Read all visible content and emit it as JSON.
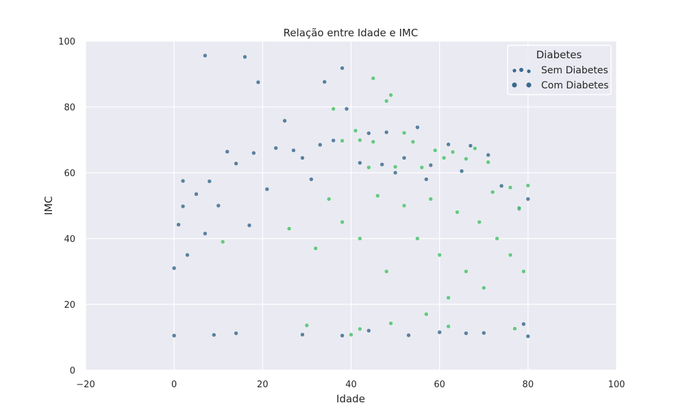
{
  "chart_data": {
    "type": "scatter",
    "title": "Relação entre Idade e IMC",
    "xlabel": "Idade",
    "ylabel": "IMC",
    "xlim": [
      -20,
      100
    ],
    "ylim": [
      0,
      100
    ],
    "xticks": [
      "−20",
      "0",
      "20",
      "40",
      "60",
      "80",
      "100"
    ],
    "yticks": [
      "0",
      "20",
      "40",
      "60",
      "80",
      "100"
    ],
    "grid": true,
    "legend": {
      "title": "Diabetes",
      "placement": "top-right",
      "entries": [
        "Sem Diabetes",
        "Com Diabetes"
      ]
    },
    "series": [
      {
        "name": "Sem Diabetes",
        "color": "#3b6a8c",
        "points": [
          [
            7,
            95.6
          ],
          [
            16,
            95.2
          ],
          [
            38,
            91.8
          ],
          [
            19,
            87.5
          ],
          [
            34,
            87.6
          ],
          [
            39,
            79.4
          ],
          [
            25,
            75.8
          ],
          [
            55,
            73.8
          ],
          [
            44,
            72
          ],
          [
            48,
            72.3
          ],
          [
            67,
            68.2
          ],
          [
            62,
            68.6
          ],
          [
            71,
            65.4
          ],
          [
            12,
            66.4
          ],
          [
            18,
            66.0
          ],
          [
            23,
            67.5
          ],
          [
            27,
            66.8
          ],
          [
            33,
            68.5
          ],
          [
            2,
            57.5
          ],
          [
            8,
            57.4
          ],
          [
            2,
            49.8
          ],
          [
            5,
            53.5
          ],
          [
            1,
            44.2
          ],
          [
            7,
            41.5
          ],
          [
            0,
            31
          ],
          [
            3,
            35
          ],
          [
            10,
            50
          ],
          [
            14,
            62.8
          ],
          [
            29,
            64.5
          ],
          [
            36,
            69.8
          ],
          [
            52,
            64.5
          ],
          [
            58,
            62.3
          ],
          [
            65,
            60.5
          ],
          [
            74,
            56
          ],
          [
            80,
            52
          ],
          [
            78,
            49
          ],
          [
            80,
            10.3
          ],
          [
            38,
            10.5
          ],
          [
            29,
            10.8
          ],
          [
            44,
            12
          ],
          [
            53,
            10.6
          ],
          [
            60,
            11.5
          ],
          [
            66,
            11.2
          ],
          [
            70,
            11.3
          ],
          [
            79,
            14
          ],
          [
            9,
            10.7
          ],
          [
            14,
            11.2
          ],
          [
            0,
            10.5
          ],
          [
            17,
            44
          ],
          [
            21,
            55
          ],
          [
            31,
            58
          ],
          [
            42,
            63
          ],
          [
            47,
            62.5
          ],
          [
            50,
            60
          ],
          [
            57,
            58
          ]
        ]
      },
      {
        "name": "Com Diabetes",
        "color": "#4ac16d",
        "points": [
          [
            45,
            88.7
          ],
          [
            49,
            83.6
          ],
          [
            48,
            81.8
          ],
          [
            36,
            79.4
          ],
          [
            41,
            72.8
          ],
          [
            52,
            72.1
          ],
          [
            54,
            69.4
          ],
          [
            42,
            69.9
          ],
          [
            45,
            69.4
          ],
          [
            38,
            69.7
          ],
          [
            59,
            66.8
          ],
          [
            63,
            66.3
          ],
          [
            68,
            67.4
          ],
          [
            71,
            63.2
          ],
          [
            61,
            64.5
          ],
          [
            66,
            64.2
          ],
          [
            56,
            61.6
          ],
          [
            50,
            61.8
          ],
          [
            44,
            61.6
          ],
          [
            80,
            56.1
          ],
          [
            76,
            55.5
          ],
          [
            72,
            54.1
          ],
          [
            78,
            49.3
          ],
          [
            40,
            10.8
          ],
          [
            42,
            12.5
          ],
          [
            49,
            14.2
          ],
          [
            62,
            13.3
          ],
          [
            77,
            12.6
          ],
          [
            57,
            17
          ],
          [
            30,
            13.6
          ],
          [
            46,
            53
          ],
          [
            52,
            50
          ],
          [
            58,
            52
          ],
          [
            64,
            48
          ],
          [
            69,
            45
          ],
          [
            73,
            40
          ],
          [
            76,
            35
          ],
          [
            79,
            30
          ],
          [
            55,
            40
          ],
          [
            60,
            35
          ],
          [
            66,
            30
          ],
          [
            70,
            25
          ],
          [
            62,
            22
          ],
          [
            48,
            30
          ],
          [
            42,
            40
          ],
          [
            38,
            45
          ],
          [
            35,
            52
          ],
          [
            11,
            39
          ],
          [
            26,
            43
          ],
          [
            32,
            37
          ]
        ]
      }
    ]
  }
}
